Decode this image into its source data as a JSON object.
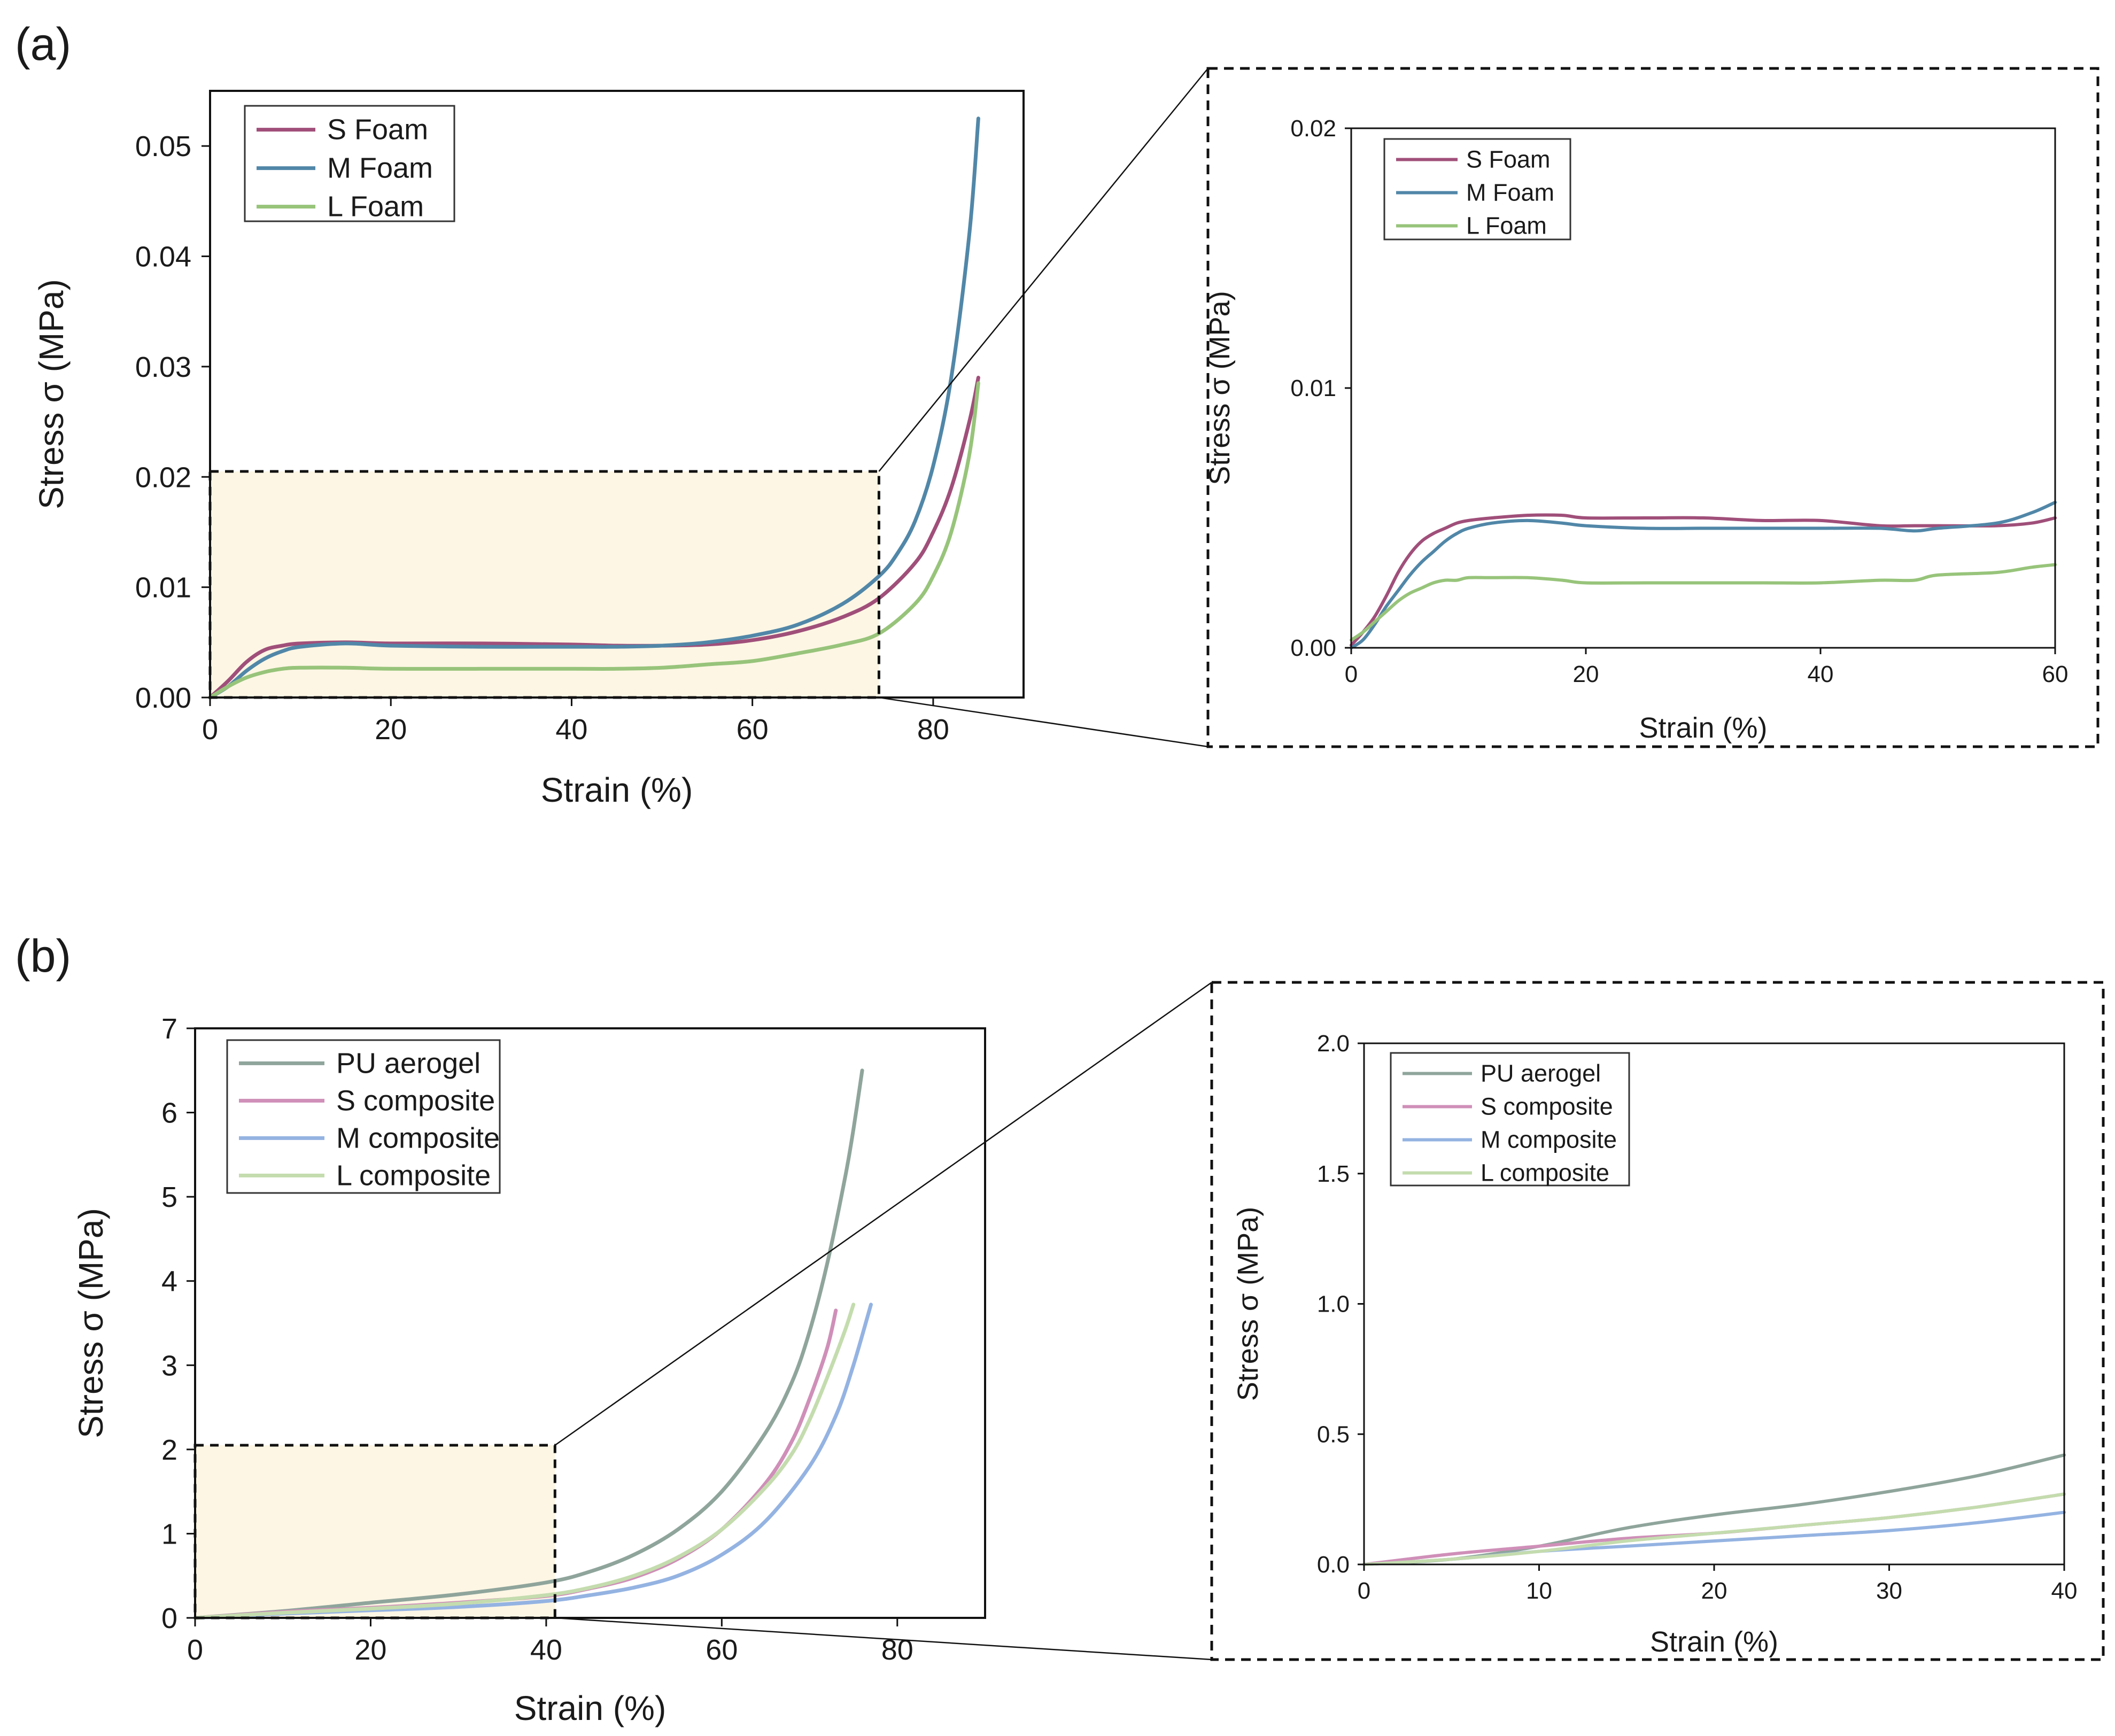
{
  "colors": {
    "s_foam": "#a04f7a",
    "m_foam": "#5187a8",
    "l_foam": "#97c47a",
    "pu_aerogel": "#8fa59c",
    "s_composite": "#cf8fb8",
    "m_composite": "#94b3e2",
    "l_composite": "#c4dcae",
    "highlight_fill": "#fdf6e4"
  },
  "chart_data": [
    {
      "id": "a_main",
      "panel_label": "(a)",
      "type": "line",
      "title": "",
      "xlabel": "Strain (%)",
      "ylabel": "Stress σ (MPa)",
      "xlim": [
        0,
        90
      ],
      "ylim": [
        0,
        0.055
      ],
      "xticks": [
        0,
        20,
        40,
        60,
        80
      ],
      "xtick_labels": [
        "0",
        "20",
        "40",
        "60",
        "80"
      ],
      "yticks": [
        0,
        0.01,
        0.02,
        0.03,
        0.04,
        0.05
      ],
      "ytick_labels": [
        "0.00",
        "0.01",
        "0.02",
        "0.03",
        "0.04",
        "0.05"
      ],
      "grid": false,
      "legend_position": "top-left",
      "zoom_region": {
        "x": [
          0,
          74
        ],
        "y": [
          0,
          0.0205
        ]
      },
      "series": [
        {
          "name": "S Foam",
          "color_key": "s_foam",
          "x": [
            0,
            2,
            4,
            6,
            8,
            10,
            15,
            20,
            30,
            40,
            45,
            50,
            55,
            60,
            65,
            70,
            74,
            78,
            80,
            82,
            84,
            85
          ],
          "y": [
            0,
            0.0015,
            0.0032,
            0.0043,
            0.0047,
            0.0049,
            0.005,
            0.0049,
            0.0049,
            0.0048,
            0.0047,
            0.0047,
            0.0048,
            0.0052,
            0.006,
            0.0073,
            0.009,
            0.0122,
            0.015,
            0.019,
            0.025,
            0.029
          ]
        },
        {
          "name": "M Foam",
          "color_key": "m_foam",
          "x": [
            0,
            2,
            4,
            6,
            8,
            10,
            15,
            20,
            30,
            40,
            45,
            50,
            55,
            60,
            65,
            70,
            74,
            76,
            78,
            80,
            82,
            84,
            85
          ],
          "y": [
            0,
            0.001,
            0.0024,
            0.0035,
            0.0042,
            0.0046,
            0.0049,
            0.0047,
            0.0046,
            0.0046,
            0.0046,
            0.0047,
            0.005,
            0.0056,
            0.0066,
            0.0085,
            0.011,
            0.013,
            0.016,
            0.021,
            0.029,
            0.042,
            0.0525
          ]
        },
        {
          "name": "L Foam",
          "color_key": "l_foam",
          "x": [
            0,
            2,
            4,
            6,
            8,
            10,
            15,
            20,
            30,
            40,
            45,
            50,
            55,
            60,
            65,
            70,
            74,
            78,
            80,
            82,
            84,
            85
          ],
          "y": [
            0,
            0.001,
            0.0018,
            0.0023,
            0.0026,
            0.0027,
            0.0027,
            0.0026,
            0.0026,
            0.0026,
            0.0026,
            0.0027,
            0.003,
            0.0033,
            0.004,
            0.0048,
            0.0058,
            0.0085,
            0.011,
            0.015,
            0.022,
            0.0285
          ]
        }
      ]
    },
    {
      "id": "a_inset",
      "type": "line",
      "title": "",
      "xlabel": "Strain (%)",
      "ylabel": "Stress σ (MPa)",
      "xlim": [
        0,
        60
      ],
      "ylim": [
        0,
        0.02
      ],
      "xticks": [
        0,
        20,
        40,
        60
      ],
      "xtick_labels": [
        "0",
        "20",
        "40",
        "60"
      ],
      "yticks": [
        0,
        0.01,
        0.02
      ],
      "ytick_labels": [
        "0.00",
        "0.01",
        "0.02"
      ],
      "grid": false,
      "legend_position": "top-left",
      "series": [
        {
          "name": "S Foam",
          "color_key": "s_foam",
          "x": [
            0,
            1,
            2,
            3,
            4,
            5,
            6,
            7,
            8,
            9,
            10,
            12,
            15,
            18,
            20,
            25,
            30,
            35,
            40,
            45,
            48,
            50,
            55,
            58,
            60
          ],
          "y": [
            0.0001,
            0.0006,
            0.0012,
            0.002,
            0.0029,
            0.0036,
            0.0041,
            0.0044,
            0.0046,
            0.0048,
            0.0049,
            0.005,
            0.0051,
            0.0051,
            0.005,
            0.005,
            0.005,
            0.0049,
            0.0049,
            0.0047,
            0.0047,
            0.0047,
            0.0047,
            0.0048,
            0.005
          ]
        },
        {
          "name": "M Foam",
          "color_key": "m_foam",
          "x": [
            0,
            1,
            2,
            3,
            4,
            5,
            6,
            7,
            8,
            9,
            10,
            12,
            15,
            18,
            20,
            25,
            30,
            35,
            40,
            45,
            48,
            50,
            55,
            58,
            60
          ],
          "y": [
            0.0,
            0.0003,
            0.0009,
            0.0016,
            0.0022,
            0.0028,
            0.0033,
            0.0037,
            0.0041,
            0.0044,
            0.0046,
            0.0048,
            0.0049,
            0.0048,
            0.0047,
            0.0046,
            0.0046,
            0.0046,
            0.0046,
            0.0046,
            0.0045,
            0.0046,
            0.0048,
            0.0052,
            0.0056
          ]
        },
        {
          "name": "L Foam",
          "color_key": "l_foam",
          "x": [
            0,
            1,
            2,
            3,
            4,
            5,
            6,
            7,
            8,
            9,
            10,
            12,
            15,
            18,
            20,
            25,
            30,
            35,
            40,
            45,
            48,
            50,
            55,
            58,
            60
          ],
          "y": [
            0.0003,
            0.0006,
            0.001,
            0.0014,
            0.0018,
            0.0021,
            0.0023,
            0.0025,
            0.0026,
            0.0026,
            0.0027,
            0.0027,
            0.0027,
            0.0026,
            0.0025,
            0.0025,
            0.0025,
            0.0025,
            0.0025,
            0.0026,
            0.0026,
            0.0028,
            0.0029,
            0.0031,
            0.0032
          ]
        }
      ]
    },
    {
      "id": "b_main",
      "panel_label": "(b)",
      "type": "line",
      "title": "",
      "xlabel": "Strain (%)",
      "ylabel": "Stress σ (MPa)",
      "xlim": [
        0,
        90
      ],
      "ylim": [
        0,
        7
      ],
      "xticks": [
        0,
        20,
        40,
        60,
        80
      ],
      "xtick_labels": [
        "0",
        "20",
        "40",
        "60",
        "80"
      ],
      "yticks": [
        0,
        1,
        2,
        3,
        4,
        5,
        6,
        7
      ],
      "ytick_labels": [
        "0",
        "1",
        "2",
        "3",
        "4",
        "5",
        "6",
        "7"
      ],
      "grid": false,
      "legend_position": "top-left",
      "zoom_region": {
        "x": [
          0,
          41
        ],
        "y": [
          0,
          2.05
        ]
      },
      "series": [
        {
          "name": "PU aerogel",
          "color_key": "pu_aerogel",
          "x": [
            0,
            10,
            20,
            30,
            40,
            45,
            50,
            55,
            60,
            65,
            68,
            70,
            72,
            74,
            75,
            76
          ],
          "y": [
            0,
            0.08,
            0.18,
            0.28,
            0.42,
            0.55,
            0.75,
            1.05,
            1.5,
            2.2,
            2.8,
            3.4,
            4.2,
            5.2,
            5.8,
            6.5
          ]
        },
        {
          "name": "S composite",
          "color_key": "s_composite",
          "x": [
            0,
            10,
            20,
            30,
            40,
            45,
            50,
            55,
            60,
            65,
            68,
            70,
            72,
            73
          ],
          "y": [
            0,
            0.07,
            0.12,
            0.18,
            0.26,
            0.35,
            0.48,
            0.7,
            1.05,
            1.6,
            2.1,
            2.6,
            3.2,
            3.65
          ]
        },
        {
          "name": "M composite",
          "color_key": "m_composite",
          "x": [
            0,
            10,
            20,
            30,
            40,
            45,
            50,
            55,
            60,
            65,
            70,
            73,
            75,
            77
          ],
          "y": [
            0,
            0.05,
            0.09,
            0.13,
            0.2,
            0.27,
            0.36,
            0.5,
            0.75,
            1.15,
            1.8,
            2.4,
            3.0,
            3.72
          ]
        },
        {
          "name": "L composite",
          "color_key": "l_composite",
          "x": [
            0,
            10,
            20,
            30,
            40,
            45,
            50,
            55,
            60,
            65,
            68,
            70,
            72,
            74,
            75
          ],
          "y": [
            0,
            0.06,
            0.11,
            0.17,
            0.27,
            0.36,
            0.5,
            0.72,
            1.05,
            1.55,
            1.95,
            2.35,
            2.85,
            3.4,
            3.72
          ]
        }
      ]
    },
    {
      "id": "b_inset",
      "type": "line",
      "title": "",
      "xlabel": "Strain (%)",
      "ylabel": "Stress σ (MPa)",
      "xlim": [
        0,
        40
      ],
      "ylim": [
        0,
        2
      ],
      "xticks": [
        0,
        10,
        20,
        30,
        40
      ],
      "xtick_labels": [
        "0",
        "10",
        "20",
        "30",
        "40"
      ],
      "yticks": [
        0,
        0.5,
        1.0,
        1.5,
        2.0
      ],
      "ytick_labels": [
        "0.0",
        "0.5",
        "1.0",
        "1.5",
        "2.0"
      ],
      "grid": false,
      "legend_position": "top-left",
      "series": [
        {
          "name": "PU aerogel",
          "color_key": "pu_aerogel",
          "x": [
            0,
            5,
            10,
            15,
            20,
            25,
            30,
            35,
            40
          ],
          "y": [
            0,
            0.02,
            0.07,
            0.14,
            0.19,
            0.23,
            0.28,
            0.34,
            0.42
          ]
        },
        {
          "name": "S composite",
          "color_key": "s_composite",
          "x": [
            0,
            5,
            10,
            15,
            20,
            25,
            30,
            35,
            40
          ],
          "y": [
            0,
            0.04,
            0.07,
            0.1,
            0.12,
            0.15,
            0.18,
            0.22,
            0.27
          ]
        },
        {
          "name": "M composite",
          "color_key": "m_composite",
          "x": [
            0,
            5,
            10,
            15,
            20,
            25,
            30,
            35,
            40
          ],
          "y": [
            0,
            0.02,
            0.05,
            0.07,
            0.09,
            0.11,
            0.13,
            0.16,
            0.2
          ]
        },
        {
          "name": "L composite",
          "color_key": "l_composite",
          "x": [
            0,
            5,
            10,
            15,
            20,
            25,
            30,
            35,
            40
          ],
          "y": [
            0,
            0.02,
            0.05,
            0.09,
            0.12,
            0.15,
            0.18,
            0.22,
            0.27
          ]
        }
      ]
    }
  ]
}
